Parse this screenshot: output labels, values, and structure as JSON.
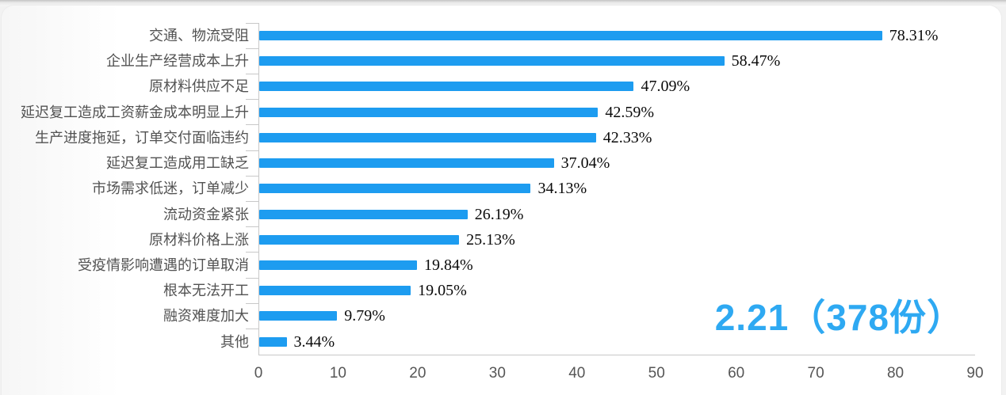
{
  "chart_data": {
    "type": "bar",
    "orientation": "horizontal",
    "title": "",
    "xlabel": "",
    "ylabel": "",
    "categories": [
      "交通、物流受阻",
      "企业生产经营成本上升",
      "原材料供应不足",
      "延迟复工造成工资薪金成本明显上升",
      "生产进度拖延，订单交付面临违约",
      "延迟复工造成用工缺乏",
      "市场需求低迷，订单减少",
      "流动资金紧张",
      "原材料价格上涨",
      "受疫情影响遭遇的订单取消",
      "根本无法开工",
      "融资难度加大",
      "其他"
    ],
    "values": [
      78.31,
      58.47,
      47.09,
      42.59,
      42.33,
      37.04,
      34.13,
      26.19,
      25.13,
      19.84,
      19.05,
      9.79,
      3.44
    ],
    "value_labels": [
      "78.31%",
      "58.47%",
      "47.09%",
      "42.59%",
      "42.33%",
      "37.04%",
      "34.13%",
      "26.19%",
      "25.13%",
      "19.84%",
      "19.05%",
      "9.79%",
      "3.44%"
    ],
    "xlim": [
      0,
      90
    ],
    "x_ticks": [
      "0",
      "10",
      "20",
      "30",
      "40",
      "50",
      "60",
      "70",
      "80",
      "90"
    ],
    "grid": false,
    "legend_position": "none",
    "colors": {
      "bar": "#1d9cf0",
      "axis": "#c8c8c8",
      "category_label": "#525252",
      "value_label": "#0a0a0a",
      "tick_label": "#565656",
      "annotation": "#2ea9f2"
    },
    "annotation": {
      "text": "2.21（378份）"
    }
  }
}
